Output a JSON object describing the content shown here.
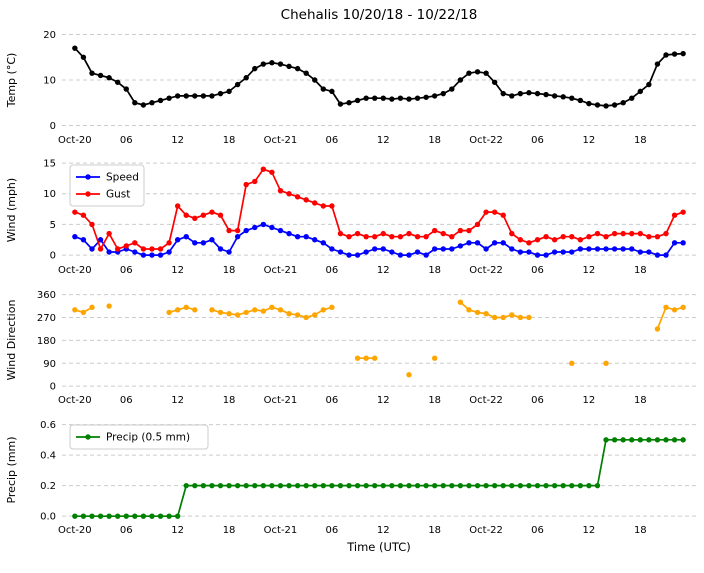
{
  "chart_data": {
    "type": "line",
    "title": "Chehalis 10/20/18 - 10/22/18",
    "xlabel": "Time (UTC)",
    "xlim": [
      -1.5,
      72.5
    ],
    "x_ticks": {
      "positions": [
        0,
        6,
        12,
        18,
        24,
        30,
        36,
        42,
        48,
        54,
        60,
        66
      ],
      "labels": [
        "Oct-20",
        "06",
        "12",
        "18",
        "Oct-21",
        "06",
        "12",
        "18",
        "Oct-22",
        "06",
        "12",
        "18"
      ]
    },
    "grid": "horizontal-dashed",
    "subplots": [
      {
        "ylabel": "Temp (°C)",
        "ylim": [
          -1,
          21
        ],
        "yticks": [
          0,
          10,
          20
        ],
        "ytick_labels": [
          "0",
          "10",
          "20"
        ],
        "legend": null,
        "series": [
          {
            "name": "Temp",
            "color": "#000000",
            "values": [
              17,
              15,
              11.5,
              11,
              10.5,
              9.5,
              8,
              5,
              4.5,
              5,
              5.5,
              6,
              6.5,
              6.5,
              6.5,
              6.5,
              6.5,
              7,
              7.5,
              9,
              10.5,
              12.5,
              13.5,
              13.8,
              13.5,
              13,
              12.5,
              11.5,
              10,
              8,
              7.5,
              4.7,
              5,
              5.5,
              6,
              6,
              6,
              5.8,
              6,
              5.8,
              6,
              6.2,
              6.5,
              7,
              8,
              10,
              11.5,
              11.8,
              11.5,
              9.5,
              7,
              6.5,
              7,
              7.2,
              7,
              6.8,
              6.5,
              6.3,
              6,
              5.5,
              4.8,
              4.5,
              4.3,
              4.5,
              5,
              6,
              7.5,
              9,
              13.5,
              15.5,
              15.7,
              15.8
            ]
          }
        ]
      },
      {
        "ylabel": "Wind (mph)",
        "ylim": [
          -0.8,
          15.5
        ],
        "yticks": [
          0,
          5,
          10,
          15
        ],
        "ytick_labels": [
          "0",
          "5",
          "10",
          "15"
        ],
        "legend": {
          "position": "top-left",
          "entries": [
            "Speed",
            "Gust"
          ]
        },
        "series": [
          {
            "name": "Speed",
            "color": "#0000ff",
            "values": [
              3,
              2.5,
              1,
              2.5,
              0.5,
              0.5,
              1,
              0.5,
              0,
              0,
              0,
              0.5,
              2.5,
              3,
              2,
              2,
              2.5,
              1,
              0.5,
              3,
              4,
              4.5,
              5,
              4.5,
              4,
              3.5,
              3,
              3,
              2.5,
              2,
              1,
              0.5,
              0,
              0,
              0.5,
              1,
              1,
              0.5,
              0,
              0,
              0.5,
              0,
              1,
              1,
              1,
              1.5,
              2,
              2,
              1,
              2,
              2,
              1,
              0.5,
              0.5,
              0,
              0,
              0.5,
              0.5,
              0.5,
              1,
              1,
              1,
              1,
              1,
              1,
              1,
              0.5,
              0.5,
              0,
              0,
              2,
              2
            ]
          },
          {
            "name": "Gust",
            "color": "#ff0000",
            "values": [
              7,
              6.5,
              5,
              1,
              3.5,
              1,
              1.5,
              2,
              1,
              1,
              1,
              2,
              8,
              6.5,
              6,
              6.5,
              7,
              6.5,
              4,
              4,
              11.5,
              12,
              14,
              13.5,
              10.5,
              10,
              9.5,
              9,
              8.5,
              8,
              8,
              3.5,
              3,
              3.5,
              3,
              3,
              3.5,
              3,
              3,
              3.5,
              3,
              3,
              4,
              3.5,
              3,
              4,
              4,
              5,
              7,
              7,
              6.5,
              3.5,
              2.5,
              2,
              2.5,
              3,
              2.5,
              3,
              3,
              2.5,
              3,
              3.5,
              3,
              3.5,
              3.5,
              3.5,
              3.5,
              3,
              3,
              3.5,
              6.5,
              7
            ]
          }
        ]
      },
      {
        "ylabel": "Wind Direction",
        "ylim": [
          -15,
          378
        ],
        "yticks": [
          0,
          90,
          180,
          270,
          360
        ],
        "ytick_labels": [
          "0",
          "90",
          "180",
          "270",
          "360"
        ],
        "legend": null,
        "series": [
          {
            "name": "Wind Direction",
            "color": "#ffa500",
            "values": [
              300,
              290,
              310,
              null,
              315,
              null,
              null,
              null,
              null,
              null,
              null,
              290,
              300,
              310,
              300,
              null,
              300,
              290,
              285,
              280,
              290,
              300,
              295,
              310,
              300,
              285,
              280,
              270,
              280,
              300,
              310,
              null,
              null,
              110,
              110,
              110,
              null,
              null,
              null,
              45,
              null,
              null,
              110,
              null,
              null,
              330,
              300,
              290,
              285,
              270,
              270,
              280,
              270,
              270,
              null,
              null,
              null,
              null,
              90,
              null,
              null,
              null,
              90,
              null,
              null,
              null,
              null,
              null,
              225,
              310,
              300,
              310
            ]
          }
        ]
      },
      {
        "ylabel": "Precip (mm)",
        "ylim": [
          -0.025,
          0.63
        ],
        "yticks": [
          0,
          0.2,
          0.4,
          0.6
        ],
        "ytick_labels": [
          "0.0",
          "0.2",
          "0.4",
          "0.6"
        ],
        "legend": {
          "position": "top-left",
          "entries": [
            "Precip (0.5 mm)"
          ]
        },
        "series": [
          {
            "name": "Precip (0.5 mm)",
            "color": "#008000",
            "values": [
              0,
              0,
              0,
              0,
              0,
              0,
              0,
              0,
              0,
              0,
              0,
              0,
              0,
              0.2,
              0.2,
              0.2,
              0.2,
              0.2,
              0.2,
              0.2,
              0.2,
              0.2,
              0.2,
              0.2,
              0.2,
              0.2,
              0.2,
              0.2,
              0.2,
              0.2,
              0.2,
              0.2,
              0.2,
              0.2,
              0.2,
              0.2,
              0.2,
              0.2,
              0.2,
              0.2,
              0.2,
              0.2,
              0.2,
              0.2,
              0.2,
              0.2,
              0.2,
              0.2,
              0.2,
              0.2,
              0.2,
              0.2,
              0.2,
              0.2,
              0.2,
              0.2,
              0.2,
              0.2,
              0.2,
              0.2,
              0.2,
              0.2,
              0.5,
              0.5,
              0.5,
              0.5,
              0.5,
              0.5,
              0.5,
              0.5,
              0.5,
              0.5
            ]
          }
        ]
      }
    ]
  }
}
